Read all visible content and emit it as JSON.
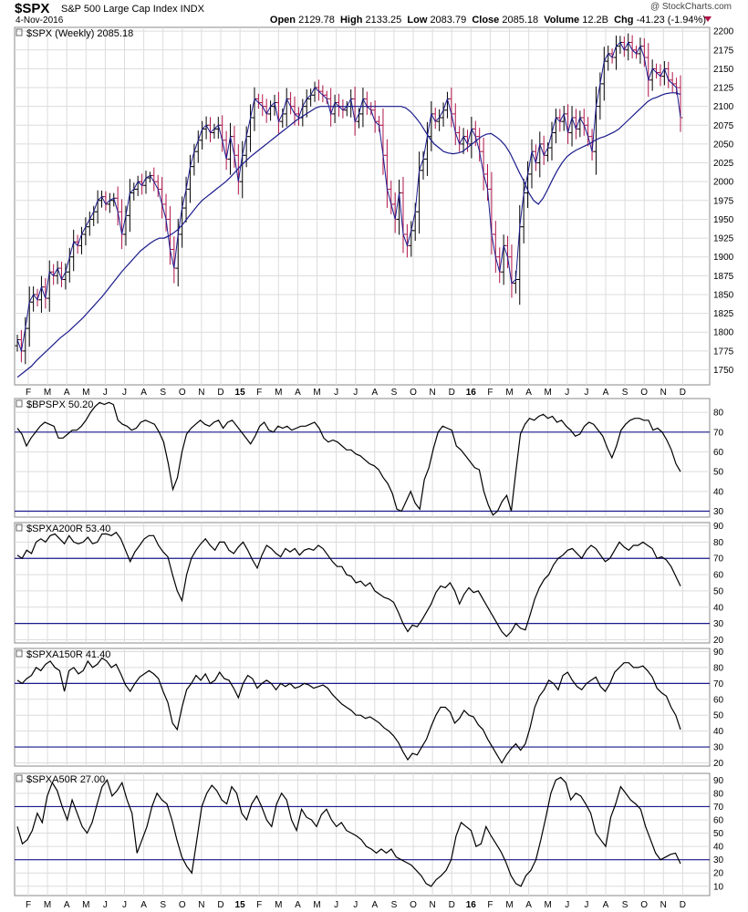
{
  "header": {
    "symbol": "$SPX",
    "description": "S&P 500 Large Cap Index INDX",
    "date": "4-Nov-2016",
    "credit": "@ StockCharts.com",
    "open_label": "Open",
    "open": "2129.78",
    "high_label": "High",
    "high": "2133.25",
    "low_label": "Low",
    "low": "2083.79",
    "close_label": "Close",
    "close": "2085.18",
    "volume_label": "Volume",
    "volume": "12.2B",
    "chg_label": "Chg",
    "chg": "-41.23 (-1.94%)"
  },
  "colors": {
    "price_up": "#000000",
    "price_down": "#b0144a",
    "close_line": "#1a1a8c",
    "moving_average": "#1a1a8c",
    "indicator_line": "#000000",
    "reference_line": "#1a1a8c",
    "grid": "#dcdcdc"
  },
  "x_axis": {
    "labels": [
      "F",
      "M",
      "A",
      "M",
      "J",
      "J",
      "A",
      "S",
      "O",
      "N",
      "D",
      "15",
      "F",
      "M",
      "A",
      "M",
      "J",
      "J",
      "A",
      "S",
      "O",
      "N",
      "D",
      "16",
      "F",
      "M",
      "A",
      "M",
      "J",
      "J",
      "A",
      "S",
      "O",
      "N",
      "D"
    ],
    "bold_labels": [
      "15",
      "16"
    ]
  },
  "chart_data": [
    {
      "type": "line",
      "panel": "price",
      "legend": "$SPX (Weekly) 2085.18",
      "y_ticks": [
        1750,
        1775,
        1800,
        1825,
        1850,
        1875,
        1900,
        1925,
        1950,
        1975,
        2000,
        2025,
        2050,
        2075,
        2100,
        2125,
        2150,
        2175,
        2200
      ],
      "ylim": [
        1730,
        2205
      ],
      "series": [
        {
          "name": "$SPX",
          "values": [
            1790,
            1775,
            1805,
            1840,
            1850,
            1843,
            1860,
            1845,
            1880,
            1875,
            1885,
            1870,
            1880,
            1900,
            1920,
            1915,
            1930,
            1940,
            1950,
            1960,
            1975,
            1980,
            1970,
            1975,
            1978,
            1960,
            1930,
            1955,
            1985,
            1990,
            2000,
            1995,
            2005,
            2008,
            2000,
            1990,
            1970,
            1950,
            1910,
            1885,
            1930,
            1965,
            1990,
            2020,
            2040,
            2055,
            2070,
            2075,
            2065,
            2070,
            2075,
            2055,
            2030,
            2060,
            2035,
            2000,
            2035,
            2060,
            2085,
            2110,
            2105,
            2100,
            2090,
            2100,
            2105,
            2080,
            2090,
            2110,
            2100,
            2090,
            2085,
            2100,
            2110,
            2115,
            2125,
            2120,
            2115,
            2110,
            2090,
            2105,
            2100,
            2095,
            2100,
            2110,
            2080,
            2090,
            2110,
            2100,
            2095,
            2080,
            2075,
            2035,
            1990,
            1970,
            1950,
            1985,
            1930,
            1915,
            1935,
            1960,
            2015,
            2030,
            2060,
            2090,
            2080,
            2085,
            2095,
            2110,
            2090,
            2065,
            2050,
            2060,
            2050,
            2070,
            2060,
            2040,
            2010,
            1990,
            1930,
            1900,
            1880,
            1915,
            1900,
            1865,
            1870,
            1940,
            1985,
            2010,
            2040,
            2025,
            2050,
            2035,
            2045,
            2065,
            2085,
            2080,
            2090,
            2065,
            2085,
            2070,
            2085,
            2075,
            2060,
            2040,
            2100,
            2130,
            2160,
            2170,
            2165,
            2180,
            2185,
            2175,
            2185,
            2175,
            2170,
            2180,
            2165,
            2135,
            2150,
            2145,
            2140,
            2150,
            2135,
            2130,
            2125,
            2085
          ]
        },
        {
          "name": "MA",
          "values": [
            1740,
            1745,
            1750,
            1755,
            1762,
            1768,
            1774,
            1780,
            1786,
            1792,
            1797,
            1802,
            1808,
            1814,
            1820,
            1827,
            1834,
            1841,
            1848,
            1856,
            1864,
            1872,
            1880,
            1887,
            1894,
            1901,
            1908,
            1913,
            1918,
            1922,
            1925,
            1925,
            1928,
            1932,
            1937,
            1944,
            1952,
            1960,
            1968,
            1975,
            1980,
            1985,
            1990,
            1995,
            2000,
            2006,
            2013,
            2020,
            2026,
            2032,
            2037,
            2042,
            2047,
            2052,
            2057,
            2062,
            2067,
            2072,
            2077,
            2082,
            2086,
            2090,
            2094,
            2098,
            2100,
            2100,
            2100,
            2100,
            2100,
            2100,
            2100,
            2100,
            2100,
            2100,
            2100,
            2100,
            2100,
            2100,
            2100,
            2100,
            2100,
            2100,
            2098,
            2093,
            2086,
            2078,
            2068,
            2058,
            2050,
            2045,
            2040,
            2038,
            2037,
            2038,
            2040,
            2045,
            2050,
            2055,
            2060,
            2063,
            2064,
            2060,
            2055,
            2048,
            2038,
            2025,
            2012,
            2000,
            1985,
            1975,
            1970,
            1978,
            1990,
            2003,
            2015,
            2025,
            2033,
            2038,
            2042,
            2045,
            2048,
            2051,
            2055,
            2058,
            2060,
            2063,
            2066,
            2070,
            2076,
            2082,
            2088,
            2094,
            2100,
            2106,
            2110,
            2112,
            2115,
            2117,
            2118,
            2118,
            2116
          ]
        }
      ]
    },
    {
      "type": "line",
      "panel": "indicator",
      "legend": "$BPSPX 50.20",
      "y_ticks": [
        30,
        40,
        50,
        60,
        70,
        80
      ],
      "ylim": [
        27,
        87
      ],
      "reference_lines": [
        30,
        70
      ],
      "series": [
        {
          "name": "$BPSPX",
          "values": [
            72,
            69,
            63,
            67,
            70,
            73,
            75,
            74,
            73,
            67,
            67,
            69,
            71,
            71,
            73,
            76,
            80,
            83,
            85,
            84,
            85,
            84,
            76,
            74,
            73,
            71,
            72,
            75,
            76,
            75,
            74,
            70,
            65,
            54,
            41,
            47,
            60,
            69,
            72,
            74,
            76,
            74,
            73,
            75,
            76,
            72,
            75,
            76,
            73,
            70,
            67,
            64,
            68,
            73,
            75,
            71,
            70,
            73,
            72,
            73,
            71,
            72,
            73,
            73,
            74,
            75,
            72,
            67,
            65,
            66,
            65,
            63,
            61,
            61,
            59,
            58,
            56,
            54,
            53,
            51,
            47,
            44,
            39,
            31,
            30,
            35,
            40,
            34,
            31,
            46,
            52,
            62,
            70,
            73,
            72,
            71,
            63,
            61,
            58,
            55,
            52,
            51,
            40,
            33,
            28,
            30,
            35,
            38,
            30,
            50,
            69,
            74,
            77,
            76,
            78,
            79,
            77,
            78,
            75,
            76,
            73,
            71,
            68,
            69,
            73,
            75,
            74,
            71,
            68,
            62,
            57,
            63,
            71,
            74,
            76,
            77,
            77,
            76,
            76,
            71,
            72,
            70,
            66,
            61,
            54,
            50
          ]
        }
      ]
    },
    {
      "type": "line",
      "panel": "indicator",
      "legend": "$SPXA200R 53.40",
      "y_ticks": [
        20,
        30,
        40,
        50,
        60,
        70,
        80,
        90
      ],
      "ylim": [
        18,
        92
      ],
      "reference_lines": [
        30,
        70
      ],
      "series": [
        {
          "name": "$SPXA200R",
          "values": [
            72,
            70,
            75,
            73,
            80,
            82,
            80,
            84,
            85,
            82,
            79,
            84,
            80,
            79,
            80,
            83,
            79,
            80,
            85,
            85,
            84,
            86,
            82,
            75,
            68,
            74,
            78,
            82,
            84,
            84,
            78,
            74,
            71,
            60,
            50,
            44,
            60,
            70,
            75,
            79,
            82,
            78,
            75,
            80,
            80,
            75,
            73,
            77,
            80,
            75,
            69,
            64,
            72,
            78,
            76,
            73,
            71,
            76,
            74,
            76,
            72,
            75,
            76,
            75,
            78,
            76,
            72,
            68,
            65,
            65,
            60,
            59,
            55,
            56,
            53,
            55,
            50,
            48,
            46,
            45,
            43,
            37,
            30,
            25,
            29,
            28,
            32,
            37,
            42,
            49,
            53,
            52,
            55,
            50,
            42,
            48,
            52,
            49,
            50,
            45,
            40,
            35,
            30,
            25,
            22,
            25,
            30,
            27,
            26,
            35,
            45,
            52,
            57,
            60,
            66,
            70,
            72,
            75,
            76,
            73,
            70,
            75,
            78,
            76,
            72,
            68,
            70,
            75,
            80,
            77,
            75,
            78,
            78,
            80,
            78,
            76,
            70,
            71,
            69,
            65,
            59,
            53
          ]
        }
      ]
    },
    {
      "type": "line",
      "panel": "indicator",
      "legend": "$SPXA150R 41.40",
      "y_ticks": [
        20,
        30,
        40,
        50,
        60,
        70,
        80,
        90
      ],
      "ylim": [
        18,
        92
      ],
      "reference_lines": [
        30,
        70
      ],
      "series": [
        {
          "name": "$SPXA150R",
          "values": [
            72,
            70,
            73,
            75,
            80,
            78,
            82,
            84,
            80,
            78,
            65,
            78,
            80,
            76,
            78,
            84,
            80,
            82,
            86,
            84,
            80,
            82,
            76,
            69,
            65,
            70,
            74,
            76,
            78,
            76,
            73,
            65,
            58,
            45,
            41,
            55,
            66,
            70,
            75,
            72,
            76,
            70,
            72,
            77,
            73,
            72,
            67,
            61,
            70,
            75,
            73,
            67,
            70,
            72,
            70,
            66,
            70,
            68,
            70,
            67,
            68,
            70,
            69,
            67,
            68,
            69,
            67,
            63,
            60,
            57,
            55,
            53,
            50,
            50,
            48,
            49,
            47,
            45,
            42,
            40,
            37,
            33,
            27,
            22,
            26,
            25,
            30,
            35,
            43,
            50,
            55,
            55,
            52,
            45,
            48,
            53,
            50,
            49,
            44,
            41,
            35,
            30,
            25,
            20,
            25,
            29,
            32,
            28,
            32,
            42,
            55,
            62,
            66,
            72,
            70,
            66,
            75,
            77,
            72,
            68,
            66,
            70,
            72,
            74,
            68,
            65,
            70,
            77,
            80,
            83,
            83,
            80,
            80,
            81,
            78,
            74,
            67,
            64,
            62,
            55,
            50,
            41
          ]
        }
      ]
    },
    {
      "type": "line",
      "panel": "indicator",
      "legend": "$SPXA50R 27.00",
      "y_ticks": [
        10,
        20,
        30,
        40,
        50,
        60,
        70,
        80,
        90
      ],
      "ylim": [
        3,
        95
      ],
      "reference_lines": [
        30,
        70
      ],
      "series": [
        {
          "name": "$SPXA50R",
          "values": [
            55,
            42,
            45,
            52,
            65,
            58,
            78,
            88,
            82,
            70,
            60,
            75,
            65,
            55,
            50,
            58,
            72,
            85,
            90,
            78,
            82,
            88,
            75,
            65,
            35,
            45,
            55,
            70,
            80,
            75,
            72,
            60,
            45,
            32,
            25,
            20,
            45,
            70,
            80,
            86,
            82,
            75,
            72,
            85,
            80,
            65,
            60,
            72,
            78,
            70,
            60,
            55,
            72,
            80,
            75,
            60,
            52,
            68,
            62,
            60,
            55,
            64,
            68,
            60,
            55,
            58,
            52,
            50,
            48,
            45,
            40,
            38,
            35,
            38,
            35,
            38,
            32,
            30,
            28,
            26,
            22,
            18,
            12,
            10,
            15,
            18,
            22,
            30,
            48,
            58,
            55,
            52,
            40,
            42,
            55,
            48,
            42,
            36,
            28,
            18,
            12,
            10,
            18,
            22,
            30,
            45,
            62,
            80,
            90,
            92,
            88,
            75,
            80,
            78,
            72,
            65,
            50,
            45,
            40,
            62,
            72,
            85,
            80,
            75,
            72,
            68,
            55,
            45,
            35,
            30,
            32,
            34,
            35,
            27
          ]
        }
      ]
    }
  ]
}
